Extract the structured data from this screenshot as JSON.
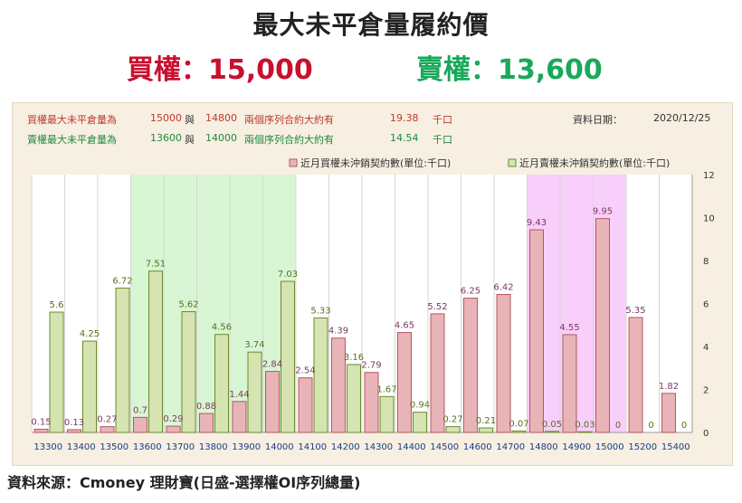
{
  "title": "最大未平倉量履約價",
  "call_headline": "買權：15,000",
  "put_headline": "賣權：13,600",
  "info": {
    "row1": {
      "label": "買權最大未平倉量為",
      "v1": "15000",
      "and": "與",
      "v2": "14800",
      "text": "兩個序列合約大約有",
      "amount": "19.38",
      "unit": "千口"
    },
    "row2": {
      "label": "賣權最大未平倉量為",
      "v1": "13600",
      "and": "與",
      "v2": "14000",
      "text": "兩個序列合約大約有",
      "amount": "14.54",
      "unit": "千口"
    },
    "date_label": "資料日期：",
    "date_value": "2020/12/25"
  },
  "source": "資料來源：Cmoney 理財寶(日盛-選擇權OI序列總量)",
  "colors": {
    "call_fill": "#e8b4b8",
    "call_stroke": "#b5585e",
    "put_fill": "#d5e4b0",
    "put_stroke": "#6a8a2c",
    "green_band": "#d8f5d4",
    "pink_band": "#f8cffa",
    "call_label": "#7a3a5e",
    "put_label": "#5b6e1f"
  },
  "chart_data": {
    "type": "bar",
    "categories": [
      "13300",
      "13400",
      "13500",
      "13600",
      "13700",
      "13800",
      "13900",
      "14000",
      "14100",
      "14200",
      "14300",
      "14400",
      "14500",
      "14600",
      "14700",
      "14800",
      "14900",
      "15000",
      "15200",
      "15400"
    ],
    "series": [
      {
        "name": "近月買權未沖銷契約數(單位:千口)",
        "values": [
          0.15,
          0.13,
          0.27,
          0.7,
          0.29,
          0.88,
          1.44,
          2.84,
          2.54,
          4.39,
          2.79,
          4.65,
          5.52,
          6.25,
          6.42,
          9.43,
          4.55,
          9.95,
          5.35,
          1.82
        ]
      },
      {
        "name": "近月賣權未沖銷契約數(單位:千口)",
        "values": [
          5.6,
          4.25,
          6.72,
          7.51,
          5.62,
          4.56,
          3.74,
          7.03,
          5.33,
          3.16,
          1.67,
          0.94,
          0.27,
          0.21,
          0.07,
          0.05,
          0.03,
          0,
          0,
          0
        ]
      }
    ],
    "y_ticks": [
      "0",
      "2",
      "4",
      "6",
      "8",
      "10",
      "12"
    ],
    "ylim": [
      0,
      12
    ],
    "y_axis_side": "right",
    "highlight_ranges": [
      {
        "from": "13600",
        "to": "14000",
        "color": "green"
      },
      {
        "from": "14800",
        "to": "15000",
        "color": "pink"
      }
    ],
    "legend_position": "top-right",
    "grid": "vertical"
  }
}
